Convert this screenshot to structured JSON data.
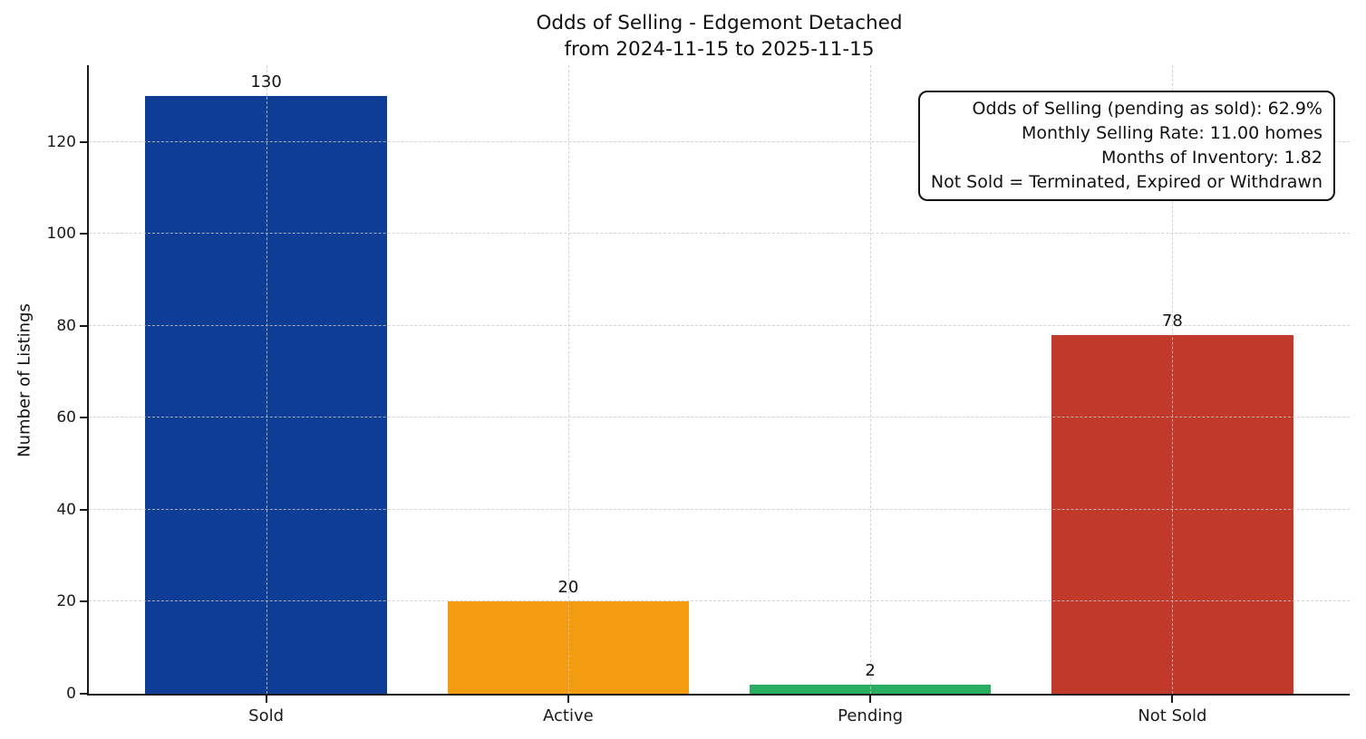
{
  "chart_data": {
    "type": "bar",
    "title": "Odds of Selling - Edgemont Detached",
    "subtitle": "from 2024-11-15 to 2025-11-15",
    "categories": [
      "Sold",
      "Active",
      "Pending",
      "Not Sold"
    ],
    "values": [
      130,
      20,
      2,
      78
    ],
    "bar_colors": [
      "#0d3d94",
      "#f39c12",
      "#27ae60",
      "#c0392b"
    ],
    "xlabel": "",
    "ylabel": "Number of Listings",
    "yticks": [
      0,
      20,
      40,
      60,
      80,
      100,
      120
    ],
    "ylim": [
      0,
      136.7
    ],
    "grid": true,
    "grid_style": "dashed",
    "grid_color": "#c9c9c9",
    "axis_color": "#1a1a1a",
    "legend": "none",
    "annotation_box": {
      "position": "top-right",
      "text_align": "right",
      "lines": [
        "Odds of Selling (pending as sold): 62.9%",
        "Monthly Selling Rate: 11.00 homes",
        "Months of Inventory: 1.82",
        "Not Sold = Terminated, Expired or Withdrawn"
      ]
    }
  }
}
